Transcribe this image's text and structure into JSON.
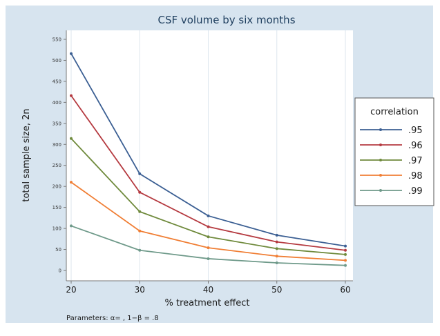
{
  "chart_data": {
    "type": "line",
    "title": "CSF volume by six months",
    "xlabel": "% treatment effect",
    "ylabel": "total sample size, 2n",
    "note": "Parameters: α= , 1−β = .8",
    "x": [
      20,
      30,
      40,
      50,
      60
    ],
    "xlim": [
      20,
      60
    ],
    "ylim": [
      0,
      550
    ],
    "xticks": [
      "20",
      "30",
      "40",
      "50",
      "60"
    ],
    "yticks": [
      "0",
      "50",
      "100",
      "150",
      "200",
      "250",
      "300",
      "350",
      "400",
      "450",
      "500",
      "550"
    ],
    "grid": "vertical",
    "legend": {
      "title": "correlation",
      "position": "right"
    },
    "series": [
      {
        "name": ".95",
        "color": "#3b5f93",
        "values": [
          516,
          230,
          130,
          84,
          58
        ]
      },
      {
        "name": ".96",
        "color": "#b53a40",
        "values": [
          416,
          186,
          104,
          68,
          48
        ]
      },
      {
        "name": ".97",
        "color": "#6f8a3c",
        "values": [
          314,
          140,
          80,
          52,
          38
        ]
      },
      {
        "name": ".98",
        "color": "#f07e34",
        "values": [
          210,
          94,
          54,
          34,
          24
        ]
      },
      {
        "name": ".99",
        "color": "#6f9a8a",
        "values": [
          106,
          48,
          28,
          18,
          12
        ]
      }
    ],
    "colors": {
      "background": "#d7e4ef",
      "plot": "#ffffff",
      "grid": "#dde6ee",
      "axis": "#777777"
    }
  }
}
